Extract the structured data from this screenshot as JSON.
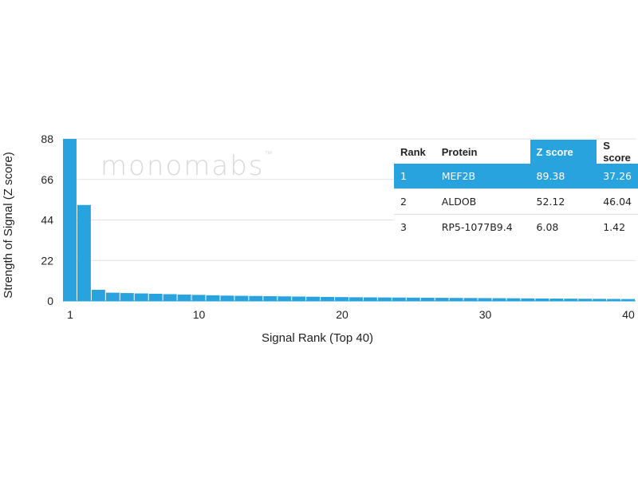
{
  "chart_data": {
    "type": "bar",
    "xlabel": "Signal Rank (Top 40)",
    "ylabel": "Strength of Signal (Z score)",
    "ylim": [
      0,
      88
    ],
    "yticks": [
      0,
      22,
      44,
      66,
      88
    ],
    "xticks": [
      1,
      10,
      20,
      30,
      40
    ],
    "grid": true,
    "bar_color": "#29a3dd",
    "x": [
      1,
      2,
      3,
      4,
      5,
      6,
      7,
      8,
      9,
      10,
      11,
      12,
      13,
      14,
      15,
      16,
      17,
      18,
      19,
      20,
      21,
      22,
      23,
      24,
      25,
      26,
      27,
      28,
      29,
      30,
      31,
      32,
      33,
      34,
      35,
      36,
      37,
      38,
      39,
      40
    ],
    "values": [
      89.38,
      52.12,
      6.08,
      4.5,
      4.3,
      4.1,
      3.9,
      3.7,
      3.5,
      3.3,
      3.1,
      2.9,
      2.8,
      2.7,
      2.6,
      2.5,
      2.4,
      2.3,
      2.2,
      2.1,
      2.0,
      1.95,
      1.9,
      1.85,
      1.8,
      1.75,
      1.7,
      1.65,
      1.6,
      1.55,
      1.5,
      1.45,
      1.4,
      1.35,
      1.3,
      1.25,
      1.2,
      1.15,
      1.1,
      1.05
    ]
  },
  "watermark": {
    "text": "monomabs",
    "tm": "™"
  },
  "table": {
    "headers": {
      "rank": "Rank",
      "protein": "Protein",
      "z": "Z score",
      "s": "S score"
    },
    "rows": [
      {
        "rank": "1",
        "protein": "MEF2B",
        "z": "89.38",
        "s": "37.26"
      },
      {
        "rank": "2",
        "protein": "ALDOB",
        "z": "52.12",
        "s": "46.04"
      },
      {
        "rank": "3",
        "protein": "RP5-1077B9.4",
        "z": "6.08",
        "s": "1.42"
      }
    ],
    "highlight_color": "#29a3dd"
  }
}
